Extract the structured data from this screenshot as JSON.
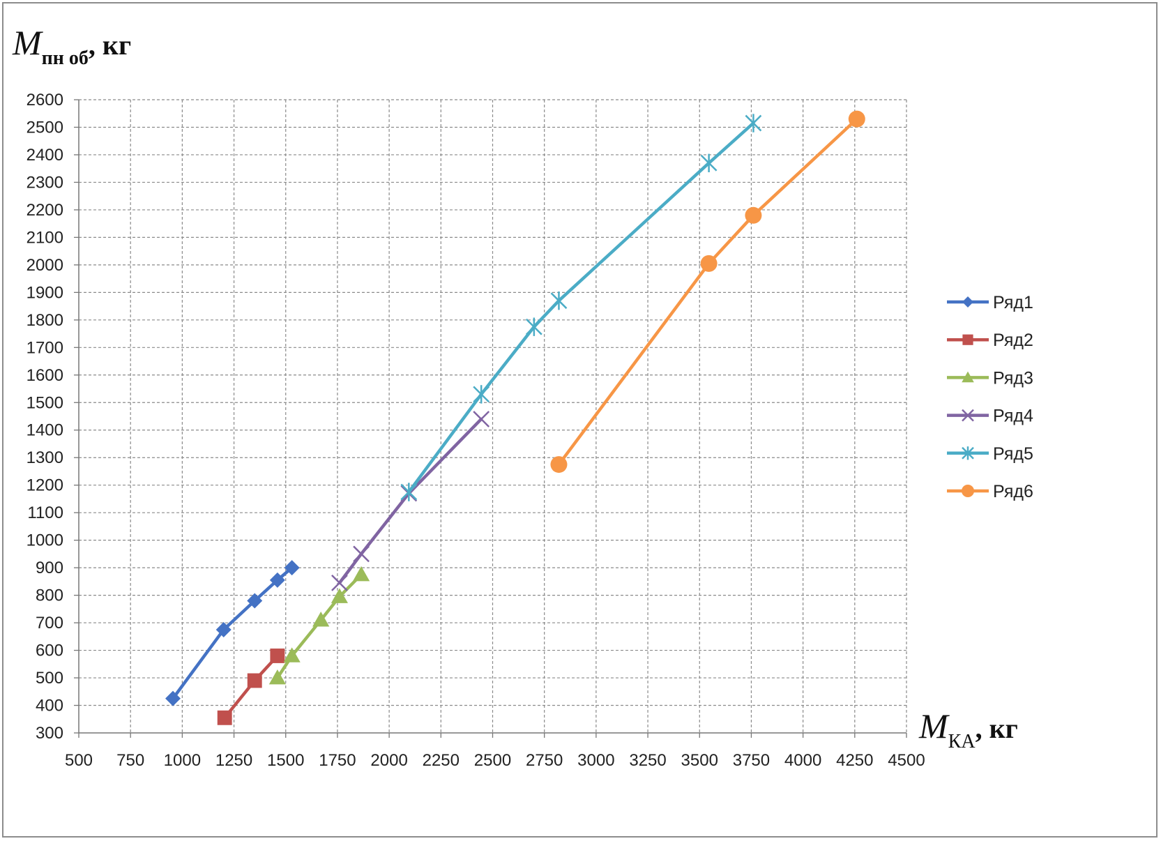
{
  "chart_data": {
    "type": "line",
    "ylabel": {
      "main": "M",
      "sub": "пн об",
      "unit": ", кг"
    },
    "xlabel": {
      "main": "M",
      "sub": "КА",
      "unit": ", кг"
    },
    "xlim": [
      500,
      4500
    ],
    "ylim": [
      300,
      2600
    ],
    "x_ticks": [
      500,
      750,
      1000,
      1250,
      1500,
      1750,
      2000,
      2250,
      2500,
      2750,
      3000,
      3250,
      3500,
      3750,
      4000,
      4250,
      4500
    ],
    "y_ticks": [
      300,
      400,
      500,
      600,
      700,
      800,
      900,
      1000,
      1100,
      1200,
      1300,
      1400,
      1500,
      1600,
      1700,
      1800,
      1900,
      2000,
      2100,
      2200,
      2300,
      2400,
      2500,
      2600
    ],
    "grid": true,
    "legend_position": "right",
    "series": [
      {
        "name": "Ряд1",
        "color": "#4472c4",
        "marker": "diamond",
        "x": [
          955,
          1200,
          1350,
          1460,
          1530
        ],
        "y": [
          425,
          675,
          780,
          855,
          900
        ]
      },
      {
        "name": "Ряд2",
        "color": "#c0504d",
        "marker": "square",
        "x": [
          1205,
          1350,
          1460
        ],
        "y": [
          355,
          490,
          580
        ]
      },
      {
        "name": "Ряд3",
        "color": "#9bbb59",
        "marker": "triangle",
        "x": [
          1460,
          1530,
          1670,
          1760,
          1865
        ],
        "y": [
          500,
          580,
          710,
          795,
          875
        ]
      },
      {
        "name": "Ряд4",
        "color": "#8064a2",
        "marker": "x",
        "x": [
          1760,
          1865,
          2095,
          2445
        ],
        "y": [
          845,
          950,
          1170,
          1440
        ]
      },
      {
        "name": "Ряд5",
        "color": "#4bacc6",
        "marker": "star",
        "x": [
          2095,
          2445,
          2700,
          2820,
          3545,
          3760
        ],
        "y": [
          1175,
          1530,
          1775,
          1870,
          2370,
          2515
        ]
      },
      {
        "name": "Ряд6",
        "color": "#f79646",
        "marker": "circle",
        "x": [
          2820,
          3545,
          3760,
          4260
        ],
        "y": [
          1275,
          2005,
          2180,
          2530
        ]
      }
    ]
  }
}
